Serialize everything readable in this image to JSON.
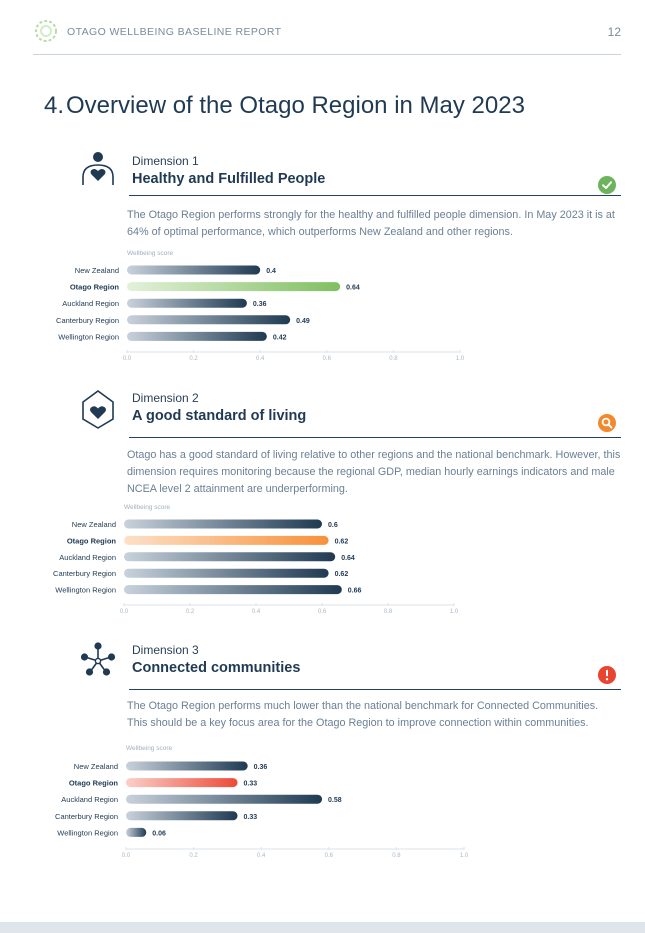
{
  "header": {
    "report_title": "OTAGO WELLBEING BASELINE REPORT",
    "page_number": "12"
  },
  "section": {
    "number": "4.",
    "title": "Overview of the Otago Region in May 2023"
  },
  "colors": {
    "navy": "#1f3a52",
    "green_status": "#6cb35b",
    "orange_status": "#f08a2c",
    "red_status": "#e8442f"
  },
  "dimensions": [
    {
      "label": "Dimension 1",
      "name": "Healthy and Fulfilled People",
      "icon": "person-heart-icon",
      "status_icon": "check-circle-icon",
      "status_color": "#6cb35b",
      "description": "The Otago Region performs strongly for the healthy and fulfilled people dimension. In May 2023 it is at 64% of optimal performance, which outperforms New Zealand and other regions."
    },
    {
      "label": "Dimension 2",
      "name": "A good standard of living",
      "icon": "house-heart-icon",
      "status_icon": "search-circle-icon",
      "status_color": "#f08a2c",
      "description": "Otago has a good standard of living relative to other regions and the national benchmark. However, this dimension requires monitoring because the regional GDP, median hourly earnings indicators and male NCEA level 2 attainment are underperforming."
    },
    {
      "label": "Dimension 3",
      "name": "Connected communities",
      "icon": "network-icon",
      "status_icon": "alert-circle-icon",
      "status_color": "#e8442f",
      "description": "The Otago Region performs much lower than the national benchmark for Connected Communities. This should be a key focus area for the Otago Region to improve connection within communities."
    }
  ],
  "chart_data": [
    {
      "type": "bar",
      "orientation": "horizontal",
      "xlabel": "Wellbeing score",
      "categories": [
        "New Zealand",
        "Otago Region",
        "Auckland Region",
        "Canterbury Region",
        "Wellington Region"
      ],
      "values": [
        0.4,
        0.64,
        0.36,
        0.49,
        0.42
      ],
      "value_labels": [
        "0.4",
        "0.64",
        "0.36",
        "0.49",
        "0.42"
      ],
      "highlight_category": "Otago Region",
      "highlight_color": "#7fbf5f",
      "xlim": [
        0,
        1
      ],
      "ticks": [
        "0.0",
        "0.2",
        "0.4",
        "0.6",
        "0.8",
        "1.0"
      ]
    },
    {
      "type": "bar",
      "orientation": "horizontal",
      "xlabel": "Wellbeing score",
      "categories": [
        "New Zealand",
        "Otago Region",
        "Auckland Region",
        "Canterbury Region",
        "Wellington Region"
      ],
      "values": [
        0.6,
        0.62,
        0.64,
        0.62,
        0.66
      ],
      "value_labels": [
        "0.6",
        "0.62",
        "0.64",
        "0.62",
        "0.66"
      ],
      "highlight_category": "Otago Region",
      "highlight_color": "#f7913a",
      "xlim": [
        0,
        1
      ],
      "ticks": [
        "0.0",
        "0.2",
        "0.4",
        "0.6",
        "0.8",
        "1.0"
      ]
    },
    {
      "type": "bar",
      "orientation": "horizontal",
      "xlabel": "Wellbeing score",
      "categories": [
        "New Zealand",
        "Otago Region",
        "Auckland Region",
        "Canterbury Region",
        "Wellington Region"
      ],
      "values": [
        0.36,
        0.33,
        0.58,
        0.33,
        0.06
      ],
      "value_labels": [
        "0.36",
        "0.33",
        "0.58",
        "0.33",
        "0.06"
      ],
      "highlight_category": "Otago Region",
      "highlight_color": "#ec4a38",
      "xlim": [
        0,
        1
      ],
      "ticks": [
        "0.0",
        "0.2",
        "0.4",
        "0.6",
        "0.8",
        "1.0"
      ]
    }
  ]
}
